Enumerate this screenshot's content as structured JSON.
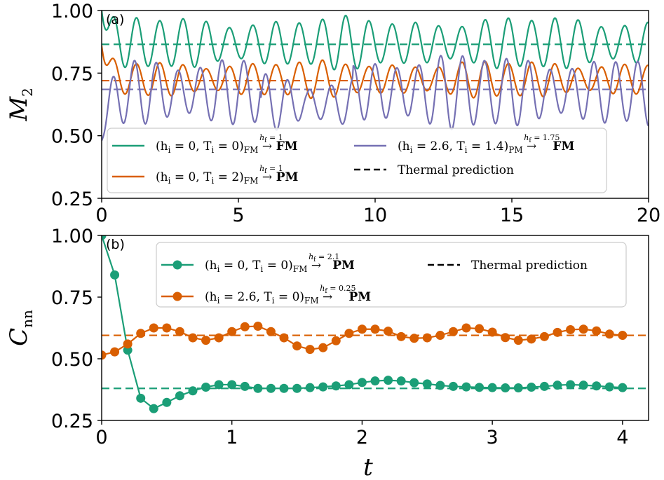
{
  "chart_data": [
    {
      "type": "line",
      "panel_label": "(a)",
      "xlabel": "",
      "ylabel": "M_2",
      "ylabel_main": "M",
      "ylabel_sub": "2",
      "xlim": [
        0,
        20
      ],
      "ylim": [
        0.25,
        1.0
      ],
      "xticks": [
        0,
        5,
        10,
        15,
        20
      ],
      "xtick_labels": [
        "0",
        "5",
        "10",
        "15",
        "20"
      ],
      "yticks": [
        0.25,
        0.5,
        0.75,
        1.0
      ],
      "ytick_labels": [
        "0.25",
        "0.50",
        "0.75",
        "1.00"
      ],
      "legend_location": "lower-left",
      "series": [
        {
          "name": "(h_i=0, T_i=0)_FM -(h_f=1)-> FM",
          "legend": {
            "open": "(h",
            "s1": "i",
            "mid": " = 0, T",
            "s2": "i",
            "close": " = 0)",
            "sub_end": "FM",
            "arrow_label": "h",
            "arrow_sub": "f",
            "arrow_value": " = 1",
            "target": "FM"
          },
          "color": "#1b9e77",
          "thermal": 0.865,
          "osc_start": 1.0,
          "mean": 0.87,
          "amplitude": 0.085,
          "period": 0.85
        },
        {
          "name": "(h_i=0, T_i=2)_FM -(h_f=1)-> PM",
          "legend": {
            "open": "(h",
            "s1": "i",
            "mid": " = 0, T",
            "s2": "i",
            "close": " = 2)",
            "sub_end": "FM",
            "arrow_label": "h",
            "arrow_sub": "f",
            "arrow_value": " = 1",
            "target": "PM"
          },
          "color": "#d95f02",
          "thermal": 0.72,
          "osc_start": 0.86,
          "mean": 0.725,
          "amplitude": 0.06,
          "period": 0.85
        },
        {
          "name": "(h_i=2.6, T_i=1.4)_PM -(h_f=1.75)-> FM",
          "legend": {
            "open": "(h",
            "s1": "i",
            "mid": " = 2.6, T",
            "s2": "i",
            "close": " = 1.4)",
            "sub_end": "PM",
            "arrow_label": "h",
            "arrow_sub": "f",
            "arrow_value": " = 1.75",
            "target": "FM"
          },
          "color": "#7570b3",
          "thermal": 0.685,
          "osc_start": 0.48,
          "mean": 0.675,
          "amplitude": 0.12,
          "period": 0.8
        }
      ],
      "thermal_legend": "Thermal prediction"
    },
    {
      "type": "line",
      "panel_label": "(b)",
      "xlabel": "t",
      "ylabel": "C_nn",
      "ylabel_main": "C",
      "ylabel_sub": "nn",
      "xlim": [
        0,
        4.2
      ],
      "ylim": [
        0.25,
        1.0
      ],
      "xticks": [
        0,
        1,
        2,
        3,
        4
      ],
      "xtick_labels": [
        "0",
        "1",
        "2",
        "3",
        "4"
      ],
      "yticks": [
        0.25,
        0.5,
        0.75,
        1.0
      ],
      "ytick_labels": [
        "0.25",
        "0.50",
        "0.75",
        "1.00"
      ],
      "legend_location": "top",
      "x": [
        0,
        0.1,
        0.2,
        0.3,
        0.4,
        0.5,
        0.6,
        0.7,
        0.8,
        0.9,
        1.0,
        1.1,
        1.2,
        1.3,
        1.4,
        1.5,
        1.6,
        1.7,
        1.8,
        1.9,
        2.0,
        2.1,
        2.2,
        2.3,
        2.4,
        2.5,
        2.6,
        2.7,
        2.8,
        2.9,
        3.0,
        3.1,
        3.2,
        3.3,
        3.4,
        3.5,
        3.6,
        3.7,
        3.8,
        3.9,
        4.0
      ],
      "series": [
        {
          "name": "(h_i=0, T_i=0)_FM -(h_f=2.1)-> PM",
          "legend": {
            "open": "(h",
            "s1": "i",
            "mid": " = 0, T",
            "s2": "i",
            "close": " = 0)",
            "sub_end": "FM",
            "arrow_label": "h",
            "arrow_sub": "f",
            "arrow_value": " = 2.1",
            "target": "PM"
          },
          "color": "#1b9e77",
          "thermal": 0.38,
          "values": [
            1.0,
            0.84,
            0.535,
            0.34,
            0.298,
            0.323,
            0.35,
            0.37,
            0.385,
            0.395,
            0.395,
            0.388,
            0.38,
            0.38,
            0.38,
            0.38,
            0.383,
            0.386,
            0.39,
            0.395,
            0.404,
            0.41,
            0.413,
            0.41,
            0.403,
            0.398,
            0.392,
            0.388,
            0.386,
            0.384,
            0.383,
            0.382,
            0.382,
            0.385,
            0.388,
            0.393,
            0.395,
            0.393,
            0.39,
            0.386,
            0.383
          ]
        },
        {
          "name": "(h_i=2.6, T_i=0)_FM -(h_f=0.25)-> PM",
          "legend": {
            "open": "(h",
            "s1": "i",
            "mid": " = 2.6, T",
            "s2": "i",
            "close": " = 0)",
            "sub_end": "FM",
            "arrow_label": "h",
            "arrow_sub": "f",
            "arrow_value": " = 0.25",
            "target": "PM"
          },
          "color": "#d95f02",
          "thermal": 0.595,
          "values": [
            0.515,
            0.528,
            0.56,
            0.603,
            0.625,
            0.625,
            0.61,
            0.585,
            0.575,
            0.585,
            0.61,
            0.63,
            0.632,
            0.61,
            0.585,
            0.552,
            0.538,
            0.545,
            0.573,
            0.603,
            0.62,
            0.62,
            0.612,
            0.59,
            0.583,
            0.585,
            0.595,
            0.61,
            0.625,
            0.622,
            0.608,
            0.586,
            0.575,
            0.58,
            0.59,
            0.607,
            0.618,
            0.62,
            0.613,
            0.6,
            0.595
          ]
        }
      ],
      "thermal_legend": "Thermal prediction"
    }
  ]
}
